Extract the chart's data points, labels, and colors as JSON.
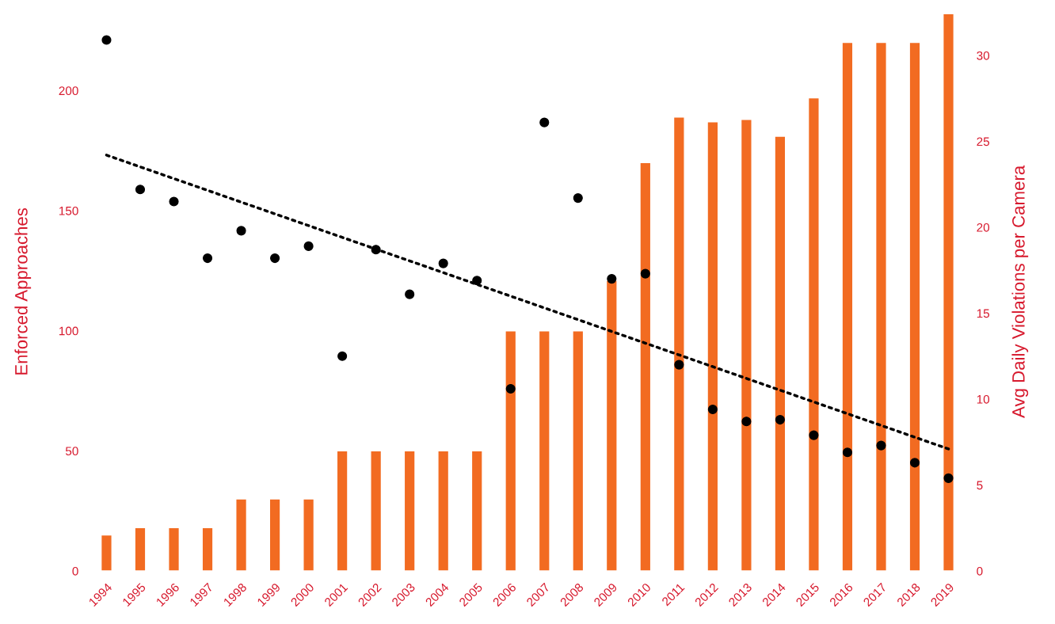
{
  "chart_data": {
    "type": "bar",
    "ylabel": "Enforced Approaches",
    "y2label": "Avg Daily Violations per Camera",
    "categories": [
      "1994",
      "1995",
      "1996",
      "1997",
      "1998",
      "1999",
      "2000",
      "2001",
      "2002",
      "2003",
      "2004",
      "2005",
      "2006",
      "2007",
      "2008",
      "2009",
      "2010",
      "2011",
      "2012",
      "2013",
      "2014",
      "2015",
      "2016",
      "2017",
      "2018",
      "2019"
    ],
    "series": [
      {
        "color": "#f26b21",
        "values": [
          15,
          18,
          18,
          18,
          30,
          30,
          30,
          50,
          50,
          50,
          50,
          50,
          100,
          100,
          100,
          121,
          170,
          189,
          187,
          188,
          181,
          197,
          220,
          220,
          220,
          232
        ]
      },
      {
        "type": "scatter",
        "axis": "y2",
        "color": "#000000",
        "marker": "circle",
        "values": [
          30.9,
          22.2,
          21.5,
          18.2,
          19.8,
          18.2,
          18.9,
          12.5,
          18.7,
          16.1,
          17.9,
          16.9,
          10.6,
          26.1,
          21.7,
          17.0,
          17.3,
          12.0,
          9.4,
          8.7,
          8.8,
          7.9,
          6.9,
          7.3,
          6.3,
          5.4
        ]
      },
      {
        "type": "line",
        "axis": "y2",
        "color": "#000000",
        "line_style": "dotted",
        "values": [
          24.2,
          null,
          null,
          null,
          null,
          null,
          null,
          null,
          null,
          null,
          null,
          null,
          null,
          null,
          null,
          null,
          null,
          null,
          null,
          null,
          null,
          null,
          null,
          null,
          null,
          7.1
        ]
      }
    ],
    "ylim": [
      0,
      232.5
    ],
    "yticks": [
      0,
      50,
      100,
      150,
      200
    ],
    "y2lim": [
      0,
      32.5
    ],
    "y2ticks": [
      0,
      5,
      10,
      15,
      20,
      25,
      30
    ],
    "grid": false,
    "legend": false
  }
}
